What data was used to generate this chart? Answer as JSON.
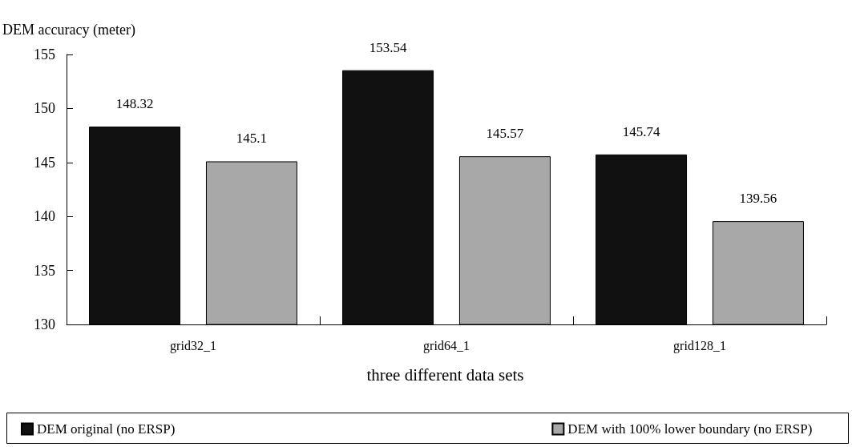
{
  "chart_data": {
    "type": "bar",
    "ylabel": "DEM accuracy (meter)",
    "xlabel": "three different data sets",
    "categories": [
      "grid32_1",
      "grid64_1",
      "grid128_1"
    ],
    "series": [
      {
        "name": "DEM original (no ERSP)",
        "color": "#111111",
        "values": [
          148.32,
          153.54,
          145.74
        ]
      },
      {
        "name": "DEM with 100% lower boundary (no ERSP)",
        "color": "#a8a8a8",
        "values": [
          145.1,
          145.57,
          139.56
        ]
      }
    ],
    "ylim": [
      130,
      155
    ],
    "yticks": [
      130,
      135,
      140,
      145,
      150,
      155
    ],
    "grid": false,
    "legend": "bottom",
    "data_labels": true
  }
}
